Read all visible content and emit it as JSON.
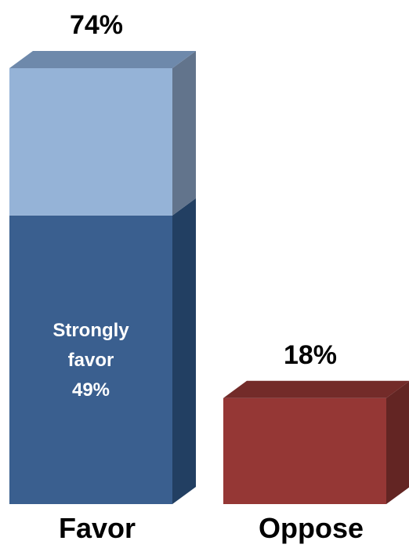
{
  "chart_data": {
    "type": "bar",
    "stacked": true,
    "three_d": true,
    "categories": [
      "Favor",
      "Oppose"
    ],
    "totals": [
      "74%",
      "18%"
    ],
    "ylim": [
      0,
      74
    ],
    "grid": false,
    "legend": "none",
    "bars": [
      {
        "category": "Favor",
        "total_label": "74%",
        "segments": [
          {
            "value": 49,
            "label_lines": [
              "Strongly",
              "favor"
            ],
            "value_label": "49%",
            "colors": {
              "front": "#3a5f8f",
              "side": "#223f62",
              "top": "#4b6f9f"
            }
          },
          {
            "value": 25,
            "colors": {
              "front": "#95b3d7",
              "side": "#62748c",
              "top": "#6e89ab"
            }
          }
        ]
      },
      {
        "category": "Oppose",
        "total_label": "18%",
        "segments": [
          {
            "value": 18,
            "colors": {
              "front": "#953735",
              "side": "#632523",
              "top": "#732b29"
            }
          }
        ]
      }
    ]
  }
}
